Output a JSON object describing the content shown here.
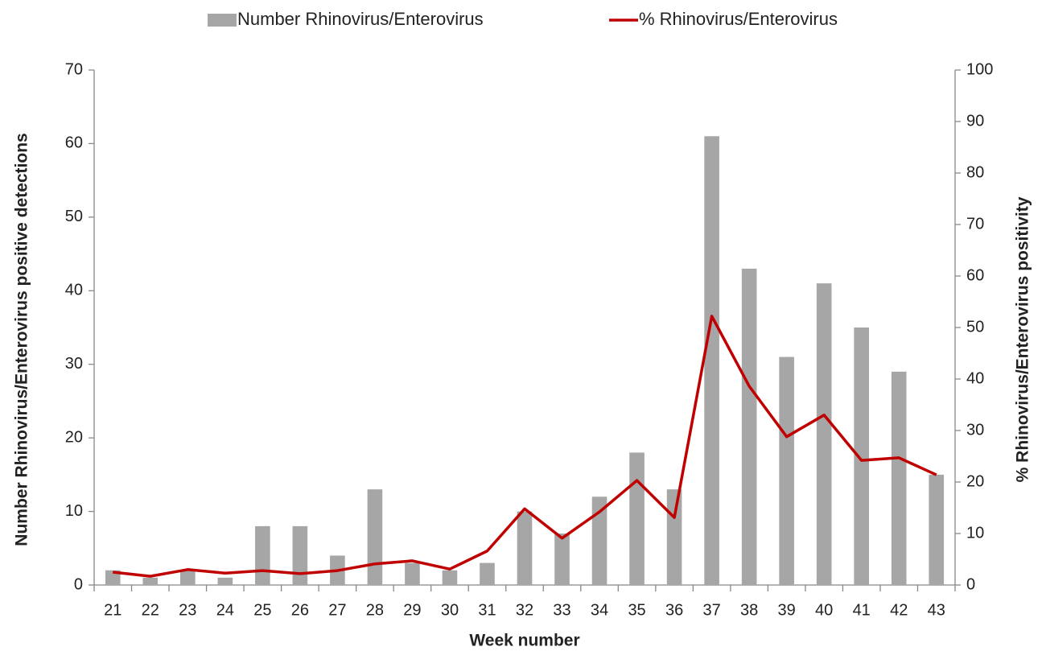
{
  "chart_data": {
    "type": "bar",
    "x_label": "Week number",
    "y_label": "Number Rhinovirus/Enterovirus positive detections",
    "y2_label": "% Rhinovirus/Enterovirus positivity",
    "categories": [
      "21",
      "22",
      "23",
      "24",
      "25",
      "26",
      "27",
      "28",
      "29",
      "30",
      "31",
      "32",
      "33",
      "34",
      "35",
      "36",
      "37",
      "38",
      "39",
      "40",
      "41",
      "42",
      "43"
    ],
    "series": [
      {
        "name": "Number Rhinovirus/Enterovirus",
        "type": "bar",
        "color": "#a6a6a6",
        "values": [
          2,
          1,
          2,
          1,
          8,
          8,
          4,
          13,
          3,
          2,
          3,
          10,
          7,
          12,
          18,
          13,
          61,
          43,
          31,
          41,
          35,
          29,
          15
        ]
      },
      {
        "name": "% Rhinovirus/Enterovirus",
        "type": "line",
        "color": "#c00000",
        "axis": "y2",
        "values": [
          2.5,
          1.7,
          3.0,
          2.3,
          2.8,
          2.2,
          2.8,
          4.1,
          4.7,
          3.1,
          6.6,
          14.8,
          9.1,
          14.2,
          20.3,
          13.1,
          52.2,
          38.6,
          28.8,
          33.0,
          24.2,
          24.7,
          21.4
        ]
      }
    ],
    "ylim": [
      0,
      70
    ],
    "yticks": [
      0,
      10,
      20,
      30,
      40,
      50,
      60,
      70
    ],
    "y2lim": [
      0,
      100
    ],
    "y2ticks": [
      0,
      10,
      20,
      30,
      40,
      50,
      60,
      70,
      80,
      90,
      100
    ],
    "legend": "top",
    "grid": false
  }
}
